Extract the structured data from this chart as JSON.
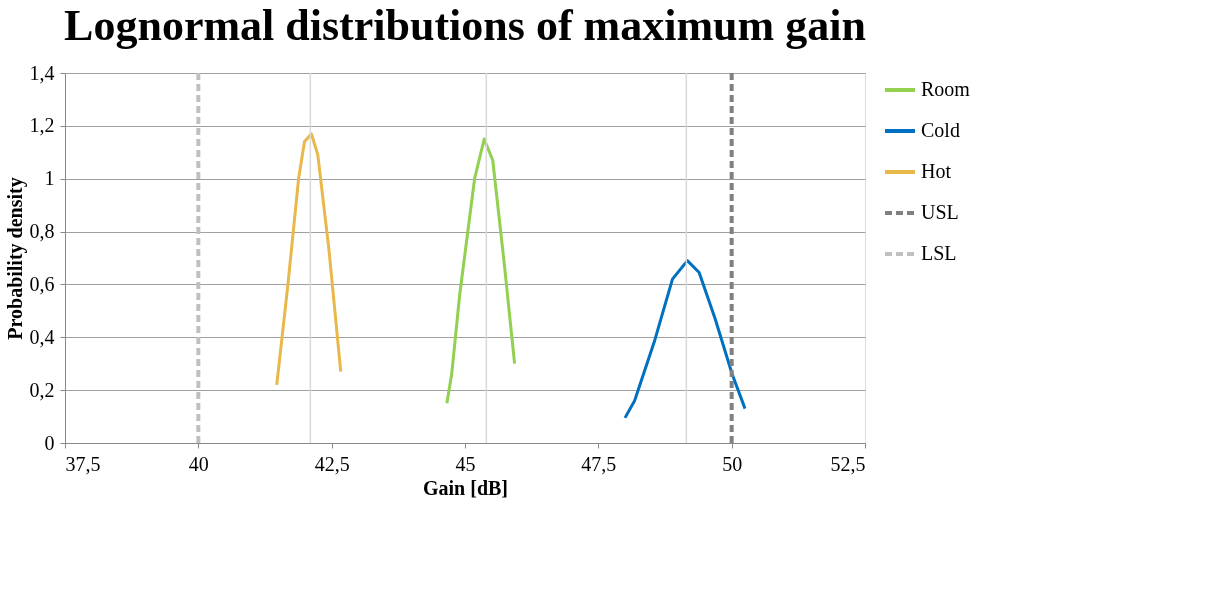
{
  "chart_data": {
    "type": "line",
    "title": "Lognormal distributions of maximum gain",
    "xlabel": "Gain [dB]",
    "ylabel": "Probability density",
    "xlim": [
      37.5,
      52.5
    ],
    "xticks": [
      {
        "value": 37.5,
        "label": "37,5"
      },
      40,
      {
        "value": 42.5,
        "label": "42,5"
      },
      45,
      {
        "value": 47.5,
        "label": "47,5"
      },
      50,
      {
        "value": 52.5,
        "label": "52,5"
      }
    ],
    "ylim": [
      0,
      1.4
    ],
    "yticks": [
      0,
      {
        "value": 0.2,
        "label": "0,2"
      },
      {
        "value": 0.4,
        "label": "0,4"
      },
      {
        "value": 0.6,
        "label": "0,6"
      },
      {
        "value": 0.8,
        "label": "0,8"
      },
      1,
      {
        "value": 1.2,
        "label": "1,2"
      },
      {
        "value": 1.4,
        "label": "1,4"
      }
    ],
    "grid": "y",
    "legend": "right",
    "marker": "none",
    "series": [
      {
        "name": "Room",
        "color": "#92d050",
        "line_style": "solid",
        "x": [
          44.66,
          44.75,
          44.9,
          45.18,
          45.36,
          45.52,
          45.73,
          45.93
        ],
        "values": [
          0.15,
          0.26,
          0.56,
          1.0,
          1.15,
          1.07,
          0.69,
          0.3
        ]
      },
      {
        "name": "Cold",
        "color": "#0070c0",
        "line_style": "solid",
        "x": [
          48.0,
          48.18,
          48.56,
          48.89,
          49.17,
          49.39,
          49.69,
          50.01,
          50.25
        ],
        "values": [
          0.095,
          0.16,
          0.39,
          0.62,
          0.69,
          0.645,
          0.47,
          0.26,
          0.13
        ]
      },
      {
        "name": "Hot",
        "color": "#e8b84b",
        "line_style": "solid",
        "x": [
          41.47,
          41.68,
          41.88,
          41.99,
          42.12,
          42.24,
          42.45,
          42.67
        ],
        "values": [
          0.22,
          0.6,
          1.0,
          1.14,
          1.17,
          1.09,
          0.73,
          0.27
        ]
      },
      {
        "name": "USL",
        "color": "#808080",
        "line_style": "dashed",
        "x": [
          50,
          50
        ],
        "values": [
          0,
          1.4
        ]
      },
      {
        "name": "LSL",
        "color": "#c0c0c0",
        "line_style": "dashed",
        "x": [
          40,
          40
        ],
        "values": [
          0,
          1.4
        ]
      }
    ],
    "ref_lines": [
      {
        "axis": "x",
        "value": 42.1,
        "color": "#d9d9d9"
      },
      {
        "axis": "x",
        "value": 45.4,
        "color": "#d9d9d9"
      },
      {
        "axis": "x",
        "value": 49.15,
        "color": "#d9d9d9"
      }
    ]
  }
}
